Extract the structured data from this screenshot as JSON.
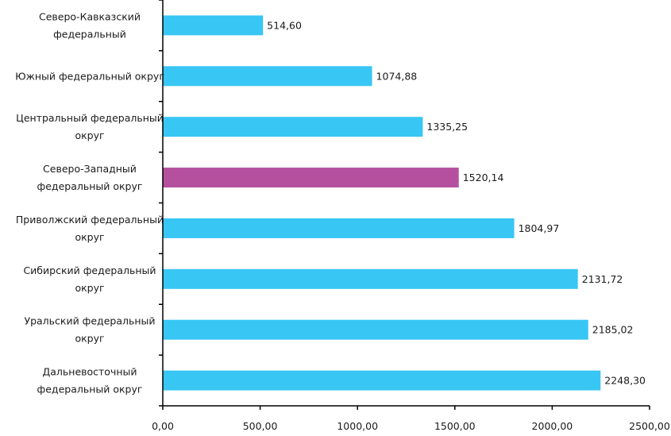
{
  "chart_data": {
    "type": "bar",
    "orientation": "horizontal",
    "categories": [
      [
        "Северо-Кавказский",
        "федеральный"
      ],
      [
        "Южный федеральный округ"
      ],
      [
        "Центральный федеральный",
        "округ"
      ],
      [
        "Северо-Западный",
        "федеральный округ"
      ],
      [
        "Приволжский федеральный",
        "округ"
      ],
      [
        "Сибирский федеральный",
        "округ"
      ],
      [
        "Уральский федеральный",
        "округ"
      ],
      [
        "Дальневосточный",
        "федеральный округ"
      ]
    ],
    "values": [
      514.6,
      1074.88,
      1335.25,
      1520.14,
      1804.97,
      2131.72,
      2185.02,
      2248.3
    ],
    "data_labels": [
      "514,60",
      "1074,88",
      "1335,25",
      "1520,14",
      "1804,97",
      "2131,72",
      "2185,02",
      "2248,30"
    ],
    "highlight_index": 3,
    "colors": {
      "default": "#38C6F4",
      "highlight": "#B5509F"
    },
    "xlim": [
      0,
      2500
    ],
    "x_ticks": [
      0,
      500,
      1000,
      1500,
      2000,
      2500
    ],
    "x_tick_labels": [
      "0,00",
      "500,00",
      "1000,00",
      "1500,00",
      "2000,00",
      "2500,00"
    ],
    "grid": false,
    "legend": "none"
  }
}
